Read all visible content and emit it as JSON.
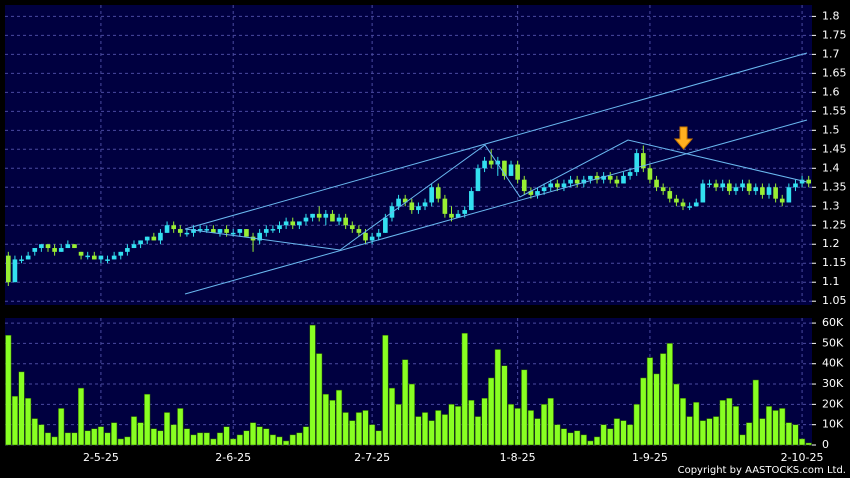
{
  "chart_data": [
    {
      "type": "candlestick",
      "up_color": "#33e0f0",
      "down_color": "#99ee33",
      "grid": true,
      "ylim": [
        1.04,
        1.83
      ],
      "yticks": [
        1.05,
        1.1,
        1.15,
        1.2,
        1.25,
        1.3,
        1.35,
        1.4,
        1.45,
        1.5,
        1.55,
        1.6,
        1.65,
        1.7,
        1.75,
        1.8
      ],
      "candles": [
        [
          1.17,
          1.18,
          1.09,
          1.1
        ],
        [
          1.1,
          1.17,
          1.1,
          1.16
        ],
        [
          1.16,
          1.17,
          1.15,
          1.16
        ],
        [
          1.16,
          1.18,
          1.16,
          1.17
        ],
        [
          1.18,
          1.19,
          1.17,
          1.19
        ],
        [
          1.19,
          1.2,
          1.18,
          1.2
        ],
        [
          1.2,
          1.2,
          1.18,
          1.19
        ],
        [
          1.19,
          1.2,
          1.17,
          1.18
        ],
        [
          1.18,
          1.2,
          1.18,
          1.19
        ],
        [
          1.19,
          1.21,
          1.19,
          1.2
        ],
        [
          1.2,
          1.2,
          1.19,
          1.19
        ],
        [
          1.18,
          1.18,
          1.16,
          1.17
        ],
        [
          1.17,
          1.18,
          1.16,
          1.17
        ],
        [
          1.17,
          1.18,
          1.16,
          1.16
        ],
        [
          1.16,
          1.17,
          1.15,
          1.17
        ],
        [
          1.16,
          1.17,
          1.15,
          1.16
        ],
        [
          1.16,
          1.18,
          1.16,
          1.17
        ],
        [
          1.17,
          1.18,
          1.16,
          1.18
        ],
        [
          1.18,
          1.2,
          1.17,
          1.19
        ],
        [
          1.19,
          1.21,
          1.19,
          1.2
        ],
        [
          1.2,
          1.21,
          1.19,
          1.21
        ],
        [
          1.21,
          1.22,
          1.2,
          1.22
        ],
        [
          1.22,
          1.23,
          1.21,
          1.21
        ],
        [
          1.21,
          1.24,
          1.2,
          1.23
        ],
        [
          1.23,
          1.26,
          1.23,
          1.25
        ],
        [
          1.25,
          1.26,
          1.23,
          1.24
        ],
        [
          1.24,
          1.25,
          1.22,
          1.23
        ],
        [
          1.23,
          1.24,
          1.22,
          1.23
        ],
        [
          1.23,
          1.25,
          1.22,
          1.24
        ],
        [
          1.24,
          1.25,
          1.23,
          1.24
        ],
        [
          1.24,
          1.25,
          1.23,
          1.24
        ],
        [
          1.24,
          1.25,
          1.23,
          1.23
        ],
        [
          1.23,
          1.24,
          1.22,
          1.24
        ],
        [
          1.24,
          1.25,
          1.22,
          1.23
        ],
        [
          1.23,
          1.24,
          1.22,
          1.23
        ],
        [
          1.23,
          1.24,
          1.22,
          1.24
        ],
        [
          1.24,
          1.24,
          1.22,
          1.22
        ],
        [
          1.22,
          1.23,
          1.18,
          1.21
        ],
        [
          1.21,
          1.24,
          1.2,
          1.23
        ],
        [
          1.23,
          1.25,
          1.22,
          1.24
        ],
        [
          1.24,
          1.25,
          1.23,
          1.24
        ],
        [
          1.24,
          1.26,
          1.23,
          1.25
        ],
        [
          1.25,
          1.27,
          1.24,
          1.26
        ],
        [
          1.26,
          1.27,
          1.24,
          1.25
        ],
        [
          1.25,
          1.26,
          1.24,
          1.26
        ],
        [
          1.26,
          1.28,
          1.25,
          1.27
        ],
        [
          1.27,
          1.28,
          1.26,
          1.28
        ],
        [
          1.28,
          1.3,
          1.26,
          1.27
        ],
        [
          1.27,
          1.29,
          1.25,
          1.28
        ],
        [
          1.28,
          1.29,
          1.26,
          1.26
        ],
        [
          1.26,
          1.28,
          1.25,
          1.27
        ],
        [
          1.27,
          1.28,
          1.24,
          1.25
        ],
        [
          1.25,
          1.26,
          1.23,
          1.24
        ],
        [
          1.24,
          1.25,
          1.22,
          1.23
        ],
        [
          1.23,
          1.24,
          1.2,
          1.21
        ],
        [
          1.21,
          1.23,
          1.2,
          1.22
        ],
        [
          1.22,
          1.24,
          1.21,
          1.23
        ],
        [
          1.23,
          1.28,
          1.23,
          1.27
        ],
        [
          1.27,
          1.31,
          1.26,
          1.3
        ],
        [
          1.3,
          1.33,
          1.29,
          1.32
        ],
        [
          1.32,
          1.33,
          1.3,
          1.31
        ],
        [
          1.31,
          1.32,
          1.28,
          1.29
        ],
        [
          1.29,
          1.31,
          1.28,
          1.3
        ],
        [
          1.3,
          1.32,
          1.29,
          1.31
        ],
        [
          1.31,
          1.36,
          1.3,
          1.35
        ],
        [
          1.35,
          1.36,
          1.31,
          1.32
        ],
        [
          1.32,
          1.33,
          1.27,
          1.28
        ],
        [
          1.28,
          1.3,
          1.26,
          1.27
        ],
        [
          1.27,
          1.29,
          1.27,
          1.28
        ],
        [
          1.28,
          1.3,
          1.27,
          1.29
        ],
        [
          1.29,
          1.35,
          1.29,
          1.34
        ],
        [
          1.34,
          1.41,
          1.34,
          1.4
        ],
        [
          1.4,
          1.43,
          1.39,
          1.42
        ],
        [
          1.42,
          1.45,
          1.4,
          1.41
        ],
        [
          1.41,
          1.43,
          1.38,
          1.42
        ],
        [
          1.42,
          1.42,
          1.37,
          1.38
        ],
        [
          1.38,
          1.42,
          1.38,
          1.41
        ],
        [
          1.41,
          1.42,
          1.36,
          1.37
        ],
        [
          1.37,
          1.38,
          1.33,
          1.34
        ],
        [
          1.34,
          1.35,
          1.32,
          1.33
        ],
        [
          1.33,
          1.35,
          1.32,
          1.34
        ],
        [
          1.34,
          1.36,
          1.33,
          1.35
        ],
        [
          1.35,
          1.37,
          1.34,
          1.36
        ],
        [
          1.36,
          1.37,
          1.34,
          1.35
        ],
        [
          1.35,
          1.37,
          1.34,
          1.36
        ],
        [
          1.36,
          1.38,
          1.35,
          1.37
        ],
        [
          1.37,
          1.38,
          1.35,
          1.36
        ],
        [
          1.36,
          1.38,
          1.35,
          1.37
        ],
        [
          1.37,
          1.38,
          1.36,
          1.38
        ],
        [
          1.38,
          1.39,
          1.36,
          1.37
        ],
        [
          1.37,
          1.39,
          1.36,
          1.38
        ],
        [
          1.38,
          1.39,
          1.36,
          1.37
        ],
        [
          1.37,
          1.38,
          1.35,
          1.36
        ],
        [
          1.36,
          1.39,
          1.36,
          1.38
        ],
        [
          1.38,
          1.4,
          1.37,
          1.39
        ],
        [
          1.39,
          1.45,
          1.38,
          1.44
        ],
        [
          1.44,
          1.46,
          1.39,
          1.4
        ],
        [
          1.4,
          1.41,
          1.36,
          1.37
        ],
        [
          1.37,
          1.38,
          1.34,
          1.35
        ],
        [
          1.35,
          1.36,
          1.33,
          1.34
        ],
        [
          1.34,
          1.35,
          1.31,
          1.32
        ],
        [
          1.32,
          1.33,
          1.3,
          1.31
        ],
        [
          1.31,
          1.32,
          1.29,
          1.3
        ],
        [
          1.3,
          1.31,
          1.29,
          1.3
        ],
        [
          1.3,
          1.32,
          1.3,
          1.31
        ],
        [
          1.31,
          1.37,
          1.31,
          1.36
        ],
        [
          1.36,
          1.37,
          1.35,
          1.36
        ],
        [
          1.36,
          1.37,
          1.34,
          1.35
        ],
        [
          1.35,
          1.37,
          1.34,
          1.36
        ],
        [
          1.36,
          1.37,
          1.33,
          1.34
        ],
        [
          1.34,
          1.36,
          1.33,
          1.35
        ],
        [
          1.35,
          1.37,
          1.34,
          1.36
        ],
        [
          1.36,
          1.37,
          1.33,
          1.34
        ],
        [
          1.34,
          1.36,
          1.33,
          1.35
        ],
        [
          1.35,
          1.36,
          1.32,
          1.33
        ],
        [
          1.33,
          1.36,
          1.32,
          1.35
        ],
        [
          1.35,
          1.36,
          1.31,
          1.32
        ],
        [
          1.32,
          1.33,
          1.3,
          1.31
        ],
        [
          1.31,
          1.36,
          1.31,
          1.35
        ],
        [
          1.35,
          1.37,
          1.34,
          1.36
        ],
        [
          1.36,
          1.38,
          1.35,
          1.37
        ],
        [
          1.37,
          1.38,
          1.35,
          1.36
        ]
      ]
    },
    {
      "type": "bar",
      "color": "#88ff22",
      "grid": true,
      "ylim": [
        0,
        62500
      ],
      "yticks": [
        0,
        {
          "value": 10000,
          "label": "10K"
        },
        {
          "value": 20000,
          "label": "20K"
        },
        {
          "value": 30000,
          "label": "30K"
        },
        {
          "value": 40000,
          "label": "40K"
        },
        {
          "value": 50000,
          "label": "50K"
        },
        {
          "value": 60000,
          "label": "60K"
        }
      ],
      "categories": [
        null,
        null,
        null,
        null,
        null,
        null,
        null,
        null,
        null,
        null,
        null,
        null,
        null,
        null,
        "2-5-25",
        null,
        null,
        null,
        null,
        null,
        null,
        null,
        null,
        null,
        null,
        null,
        null,
        null,
        null,
        null,
        null,
        null,
        null,
        null,
        "2-6-25",
        null,
        null,
        null,
        null,
        null,
        null,
        null,
        null,
        null,
        null,
        null,
        null,
        null,
        null,
        null,
        null,
        null,
        null,
        null,
        null,
        "2-7-25",
        null,
        null,
        null,
        null,
        null,
        null,
        null,
        null,
        null,
        null,
        null,
        null,
        null,
        null,
        null,
        null,
        null,
        null,
        null,
        null,
        null,
        "1-8-25",
        null,
        null,
        null,
        null,
        null,
        null,
        null,
        null,
        null,
        null,
        null,
        null,
        null,
        null,
        null,
        null,
        null,
        null,
        null,
        "1-9-25",
        null,
        null,
        null,
        null,
        null,
        null,
        null,
        null,
        null,
        null,
        null,
        null,
        null,
        null,
        null,
        null,
        null,
        null,
        null,
        null,
        null,
        null,
        "2-10-25",
        null
      ],
      "values": [
        54000,
        24000,
        36000,
        23000,
        13000,
        10000,
        6000,
        4000,
        18000,
        6000,
        6000,
        28000,
        7000,
        8000,
        9000,
        6000,
        11000,
        3000,
        4000,
        14000,
        11000,
        25000,
        8000,
        7000,
        16000,
        10000,
        18000,
        8000,
        5000,
        6000,
        6000,
        3000,
        6000,
        9000,
        3000,
        5000,
        7000,
        11000,
        9000,
        8000,
        5000,
        4000,
        2000,
        5000,
        6000,
        9000,
        59000,
        45000,
        25000,
        22000,
        27000,
        16000,
        12000,
        16000,
        17000,
        10000,
        7000,
        54000,
        28000,
        20000,
        42000,
        30000,
        14000,
        16000,
        12000,
        17000,
        15000,
        20000,
        19000,
        55000,
        22000,
        14000,
        23000,
        33000,
        47000,
        39000,
        20000,
        18000,
        37000,
        17000,
        13000,
        20000,
        23000,
        10000,
        8000,
        6000,
        7000,
        5000,
        2000,
        4000,
        10000,
        8000,
        13000,
        12000,
        10000,
        20000,
        33000,
        43000,
        35000,
        45000,
        50000,
        30000,
        23000,
        14000,
        21000,
        12000,
        13000,
        14000,
        22000,
        23000,
        19000,
        5000,
        11000,
        32000,
        13000,
        19000,
        17000,
        18000,
        11000,
        10000,
        3000,
        1000
      ]
    }
  ],
  "copyright": "Copyright by AASTOCKS.com Ltd."
}
